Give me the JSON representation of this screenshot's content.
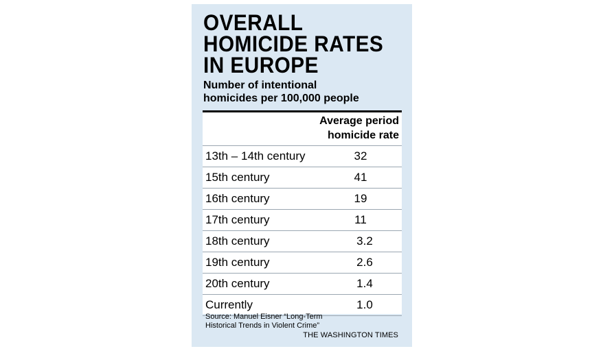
{
  "title": "OVERALL\nHOMICIDE RATES\nIN EUROPE",
  "subtitle": "Number of intentional\nhomicides per 100,000 people",
  "column_header": "Average period\nhomicide rate",
  "source": "Source: Manuel Eisner “Long-Term\nHistorical Trends in Violent Crime”",
  "credit": "THE WASHINGTON TIMES",
  "colors": {
    "panel_background": "#dbe8f3",
    "table_background": "#ffffff",
    "rule": "#000000",
    "row_divider": "#9aa6b1"
  },
  "chart_data": {
    "type": "table",
    "title": "OVERALL HOMICIDE RATES IN EUROPE",
    "subtitle": "Number of intentional homicides per 100,000 people",
    "columns": [
      "",
      "Average period homicide rate"
    ],
    "rows": [
      {
        "period": "13th – 14th century",
        "rate": "32"
      },
      {
        "period": "15th century",
        "rate": "41"
      },
      {
        "period": "16th century",
        "rate": "19"
      },
      {
        "period": "17th century",
        "rate": "11"
      },
      {
        "period": "18th century",
        "rate": "3.2"
      },
      {
        "period": "19th century",
        "rate": "2.6"
      },
      {
        "period": "20th century",
        "rate": "1.4"
      },
      {
        "period": "Currently",
        "rate": "1.0"
      }
    ]
  }
}
